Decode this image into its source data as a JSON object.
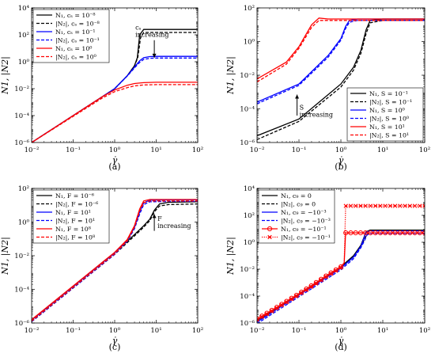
{
  "chart_data": [
    {
      "type": "line",
      "panel_label": "(a)",
      "xlabel": "γ̇",
      "ylabel": "N1, |N2|",
      "x_scale": "log",
      "y_scale": "log",
      "xlim": [
        0.01,
        100
      ],
      "ylim": [
        1e-06,
        10000
      ],
      "x_ticks": [
        0.01,
        0.1,
        1,
        10,
        100
      ],
      "x_tick_labels": [
        "10⁻²",
        "10⁻¹",
        "10⁰",
        "10¹",
        "10²"
      ],
      "y_ticks": [
        1e-06,
        0.0001,
        0.01,
        1,
        100,
        10000
      ],
      "y_tick_labels": [
        "10⁻⁶",
        "10⁻⁴",
        "10⁻²",
        "10⁰",
        "10²",
        "10⁴"
      ],
      "legend_position": "top-left",
      "annotation": {
        "lines": [
          "cₛ",
          "increasing"
        ],
        "x": 9,
        "y": 80,
        "arrow_from": 40,
        "arrow_to": 2
      },
      "series": [
        {
          "name": "N₁, cₛ = 10⁻⁸",
          "color": "#000000",
          "dash": "solid",
          "x": [
            0.01,
            1.0,
            2.0,
            3.0,
            3.5,
            4.0,
            5.0,
            10,
            100
          ],
          "y": [
            1e-06,
            0.01,
            0.09,
            0.5,
            2,
            100,
            250,
            250,
            250
          ]
        },
        {
          "name": "|N₂|, cₛ = 10⁻⁸",
          "color": "#000000",
          "dash": "dashed",
          "x": [
            0.01,
            1.0,
            2.0,
            3.0,
            3.6,
            4.2,
            5.0,
            10,
            100
          ],
          "y": [
            1e-06,
            0.01,
            0.09,
            0.5,
            2,
            60,
            150,
            150,
            150
          ]
        },
        {
          "name": "N₁, cₛ = 10⁻¹",
          "color": "#0000ff",
          "dash": "solid",
          "x": [
            0.01,
            1.0,
            2.0,
            3.0,
            4.0,
            5.0,
            7.0,
            10,
            100
          ],
          "y": [
            1e-06,
            0.01,
            0.09,
            0.4,
            1.2,
            2.0,
            2.4,
            2.5,
            2.5
          ]
        },
        {
          "name": "|N₂|, cₛ = 10⁻¹",
          "color": "#0000ff",
          "dash": "dashed",
          "x": [
            0.01,
            1.0,
            2.0,
            3.0,
            4.0,
            5.0,
            7.0,
            10,
            100
          ],
          "y": [
            1e-06,
            0.01,
            0.085,
            0.35,
            0.9,
            1.5,
            1.8,
            1.9,
            1.9
          ]
        },
        {
          "name": "N₁, cₛ = 10⁰",
          "color": "#ff0000",
          "dash": "solid",
          "x": [
            0.01,
            0.5,
            1.0,
            2.0,
            3.0,
            5.0,
            10,
            100
          ],
          "y": [
            1e-06,
            0.0025,
            0.008,
            0.018,
            0.024,
            0.028,
            0.03,
            0.03
          ]
        },
        {
          "name": "|N₂|, cₛ = 10⁰",
          "color": "#ff0000",
          "dash": "dashed",
          "x": [
            0.01,
            0.5,
            1.0,
            2.0,
            3.0,
            5.0,
            10,
            100
          ],
          "y": [
            1e-06,
            0.002,
            0.006,
            0.012,
            0.016,
            0.019,
            0.02,
            0.02
          ]
        }
      ]
    },
    {
      "type": "line",
      "panel_label": "(b)",
      "xlabel": "γ̇",
      "ylabel": "N1, |N2|",
      "x_scale": "log",
      "y_scale": "log",
      "xlim": [
        0.01,
        100
      ],
      "ylim": [
        1e-06,
        100
      ],
      "x_ticks": [
        0.01,
        0.1,
        1,
        10,
        100
      ],
      "x_tick_labels": [
        "10⁻²",
        "10⁻¹",
        "10⁰",
        "10¹",
        "10²"
      ],
      "y_ticks": [
        1e-06,
        0.0001,
        0.01,
        1,
        100
      ],
      "y_tick_labels": [
        "10⁻⁶",
        "10⁻⁴",
        "10⁻²",
        "10⁰",
        "10²"
      ],
      "legend_position": "bottom-right",
      "annotation": {
        "lines": [
          "S",
          "increasing"
        ],
        "x": 0.09,
        "y": 3e-05,
        "arrow_from": 4e-05,
        "arrow_to": 0.0007
      },
      "series": [
        {
          "name": "N₁, S = 10⁻¹",
          "color": "#000000",
          "dash": "solid",
          "x": [
            0.01,
            0.1,
            1.0,
            2.0,
            3.0,
            4.0,
            5.0,
            10,
            100
          ],
          "y": [
            2.5e-06,
            2.5e-05,
            0.003,
            0.03,
            0.3,
            5,
            18,
            22,
            22
          ]
        },
        {
          "name": "|N₂|, S = 10⁻¹",
          "color": "#000000",
          "dash": "dashed",
          "x": [
            0.01,
            0.1,
            1.0,
            2.0,
            3.0,
            4.0,
            5.0,
            10,
            100
          ],
          "y": [
            1.5e-06,
            1.8e-05,
            0.002,
            0.02,
            0.2,
            3,
            13,
            18,
            18
          ]
        },
        {
          "name": "N₁, S = 10⁰",
          "color": "#0000ff",
          "dash": "solid",
          "x": [
            0.01,
            0.1,
            0.5,
            1.0,
            1.3,
            1.6,
            2.5,
            10,
            100
          ],
          "y": [
            0.00025,
            0.003,
            0.15,
            1.5,
            8,
            18,
            22,
            22,
            22
          ]
        },
        {
          "name": "|N₂|, S = 10⁰",
          "color": "#0000ff",
          "dash": "dashed",
          "x": [
            0.01,
            0.1,
            0.5,
            1.0,
            1.3,
            1.6,
            2.5,
            10,
            100
          ],
          "y": [
            0.0002,
            0.0025,
            0.12,
            1.2,
            6,
            14,
            18,
            18,
            18
          ]
        },
        {
          "name": "N₁, S = 10¹",
          "color": "#ff0000",
          "dash": "solid",
          "x": [
            0.01,
            0.05,
            0.1,
            0.2,
            0.3,
            0.5,
            1.0,
            100
          ],
          "y": [
            0.006,
            0.06,
            0.5,
            10,
            25,
            22,
            22,
            22
          ]
        },
        {
          "name": "|N₂|, S = 10¹",
          "color": "#ff0000",
          "dash": "dashed",
          "x": [
            0.01,
            0.05,
            0.1,
            0.2,
            0.3,
            0.5,
            1.0,
            100
          ],
          "y": [
            0.004,
            0.045,
            0.4,
            7,
            18,
            18,
            18,
            18
          ]
        }
      ]
    },
    {
      "type": "line",
      "panel_label": "(c)",
      "xlabel": "γ̇",
      "ylabel": "N1, |N2|",
      "x_scale": "log",
      "y_scale": "log",
      "xlim": [
        0.01,
        100
      ],
      "ylim": [
        1e-06,
        100
      ],
      "x_ticks": [
        0.01,
        0.1,
        1,
        10,
        100
      ],
      "x_tick_labels": [
        "10⁻²",
        "10⁻¹",
        "10⁰",
        "10¹",
        "10²"
      ],
      "y_ticks": [
        1e-06,
        0.0001,
        0.01,
        1,
        100
      ],
      "y_tick_labels": [
        "10⁻⁶",
        "10⁻⁴",
        "10⁻²",
        "10⁰",
        "10²"
      ],
      "legend_position": "top-left",
      "annotation": {
        "lines": [
          "F",
          "increasing"
        ],
        "x": 9,
        "y": 0.5,
        "arrow_from": 0.3,
        "arrow_to": 3
      },
      "series": [
        {
          "name": "N₁, F = 10⁻⁶",
          "color": "#000000",
          "dash": "solid",
          "x": [
            0.01,
            1.0,
            3.0,
            5.0,
            7.0,
            9.0,
            12,
            20,
            100
          ],
          "y": [
            1.5e-06,
            0.015,
            0.18,
            0.6,
            1.5,
            5,
            12,
            15,
            16
          ]
        },
        {
          "name": "|N₂|, F = 10⁻⁶",
          "color": "#000000",
          "dash": "dashed",
          "x": [
            0.01,
            1.0,
            3.0,
            5.0,
            7.0,
            9.0,
            12,
            20,
            100
          ],
          "y": [
            1.2e-06,
            0.012,
            0.15,
            0.5,
            1.2,
            4,
            9,
            11,
            12
          ]
        },
        {
          "name": "N₁, F = 10¹",
          "color": "#0000ff",
          "dash": "solid",
          "x": [
            0.01,
            1.0,
            2.0,
            3.0,
            4.0,
            5.0,
            7.0,
            20,
            100
          ],
          "y": [
            1.5e-06,
            0.015,
            0.08,
            0.5,
            4,
            14,
            20,
            21,
            21
          ]
        },
        {
          "name": "|N₂|, F = 10¹",
          "color": "#0000ff",
          "dash": "dashed",
          "x": [
            0.01,
            1.0,
            2.0,
            3.0,
            4.0,
            5.0,
            7.0,
            20,
            100
          ],
          "y": [
            1.2e-06,
            0.012,
            0.07,
            0.4,
            3,
            11,
            16,
            17,
            17
          ]
        },
        {
          "name": "N₁, F = 10⁸",
          "color": "#ff0000",
          "dash": "solid",
          "x": [
            0.01,
            1.0,
            2.0,
            3.0,
            4.0,
            5.0,
            7.0,
            20,
            100
          ],
          "y": [
            1.6e-06,
            0.016,
            0.09,
            0.6,
            6,
            18,
            22,
            22,
            22
          ]
        },
        {
          "name": "|N₂|, F = 10⁸",
          "color": "#ff0000",
          "dash": "dashed",
          "x": [
            0.01,
            1.0,
            2.0,
            3.0,
            4.0,
            5.0,
            7.0,
            20,
            100
          ],
          "y": [
            1.3e-06,
            0.013,
            0.075,
            0.5,
            4.5,
            14,
            18,
            18,
            18
          ]
        }
      ]
    },
    {
      "type": "line",
      "panel_label": "(d)",
      "xlabel": "γ̇",
      "ylabel": "N1, |N2|",
      "x_scale": "log",
      "y_scale": "log",
      "xlim": [
        0.01,
        100
      ],
      "ylim": [
        1e-06,
        10000
      ],
      "x_ticks": [
        0.01,
        0.1,
        1,
        10,
        100
      ],
      "x_tick_labels": [
        "10⁻²",
        "10⁻¹",
        "10⁰",
        "10¹",
        "10²"
      ],
      "y_ticks": [
        1e-06,
        0.0001,
        0.01,
        1,
        100,
        10000
      ],
      "y_tick_labels": [
        "10⁻⁶",
        "10⁻⁴",
        "10⁻²",
        "10⁰",
        "10²",
        "10⁴"
      ],
      "legend_position": "top-left",
      "series": [
        {
          "name": "N₁, c₉ = 0",
          "color": "#000000",
          "dash": "solid",
          "x": [
            0.01,
            1.0,
            2.0,
            3.0,
            3.5,
            4.0,
            5.0,
            100
          ],
          "y": [
            1.5e-06,
            0.015,
            0.1,
            0.6,
            2,
            6,
            8,
            8
          ]
        },
        {
          "name": "|N₂|, c₉ = 0",
          "color": "#000000",
          "dash": "dashed",
          "x": [
            0.01,
            1.0,
            2.0,
            3.0,
            3.6,
            4.2,
            5.0,
            100
          ],
          "y": [
            1.2e-06,
            0.012,
            0.08,
            0.5,
            1.5,
            4,
            5,
            5
          ]
        },
        {
          "name": "N₁, c₉ = −10⁻³",
          "color": "#0000ff",
          "dash": "solid",
          "x": [
            0.01,
            1.0,
            2.0,
            3.0,
            3.5,
            4.0,
            5.0,
            100
          ],
          "y": [
            1.2e-06,
            0.012,
            0.08,
            0.5,
            1.8,
            5.5,
            7,
            7
          ]
        },
        {
          "name": "|N₂|, c₉ = −10⁻³",
          "color": "#0000ff",
          "dash": "dashed",
          "x": [
            0.01,
            1.0,
            2.0,
            3.0,
            3.6,
            4.2,
            5.0,
            100
          ],
          "y": [
            9e-07,
            0.009,
            0.06,
            0.4,
            1.2,
            3.5,
            4.5,
            4.5
          ]
        },
        {
          "name": "N₁, c₉ = −10⁻¹",
          "color": "#ff0000",
          "dash": "solid",
          "marker": "circle",
          "x": [
            0.01,
            0.02,
            0.05,
            0.1,
            0.2,
            0.5,
            1.0,
            1.2,
            1.3,
            2,
            5,
            10,
            100
          ],
          "y": [
            2e-06,
            7e-06,
            4e-05,
            0.00015,
            0.0006,
            0.004,
            0.015,
            0.03,
            5,
            5,
            5,
            5,
            5
          ]
        },
        {
          "name": "|N₂|, c₉ = −10⁻¹",
          "color": "#ff0000",
          "dash": "dotted",
          "marker": "x",
          "x": [
            0.01,
            0.02,
            0.05,
            0.1,
            0.2,
            0.5,
            1.0,
            1.2,
            1.3,
            2,
            5,
            10,
            100
          ],
          "y": [
            1.8e-06,
            6e-06,
            3.5e-05,
            0.00013,
            0.0005,
            0.0035,
            0.013,
            0.025,
            500,
            500,
            500,
            500,
            500
          ]
        }
      ]
    }
  ]
}
